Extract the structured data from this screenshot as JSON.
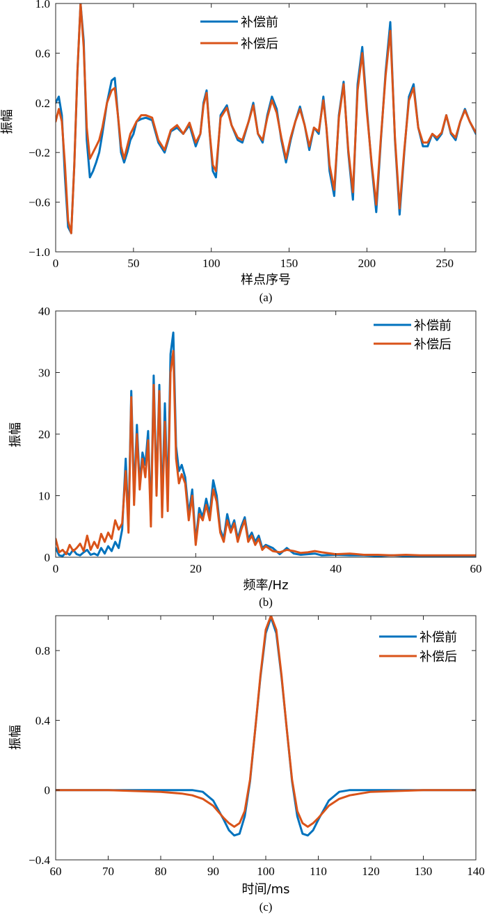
{
  "chart_data": [
    {
      "type": "line",
      "caption": "(a)",
      "xlabel": "样点序号",
      "ylabel": "振幅",
      "xlim": [
        0,
        270
      ],
      "ylim": [
        -1.0,
        1.0
      ],
      "xticks": [
        0,
        50,
        100,
        150,
        200,
        250
      ],
      "xtick_labels": [
        "0",
        "50",
        "100",
        "150",
        "200",
        "250"
      ],
      "yticks": [
        1.0,
        0.6,
        0.2,
        -0.2,
        -0.6,
        -1.0
      ],
      "ytick_labels": [
        "1.0",
        "0.6",
        "0.2",
        "−0.2",
        "−0.6",
        "−1.0"
      ],
      "grid": false,
      "legend": "top-center",
      "series": [
        {
          "name": "补偿前",
          "color": "#0072BD",
          "x": [
            0,
            2,
            4,
            6,
            8,
            10,
            12,
            14,
            16,
            18,
            20,
            22,
            24,
            26,
            28,
            30,
            33,
            36,
            38,
            40,
            42,
            44,
            46,
            48,
            50,
            52,
            55,
            58,
            62,
            66,
            70,
            74,
            78,
            82,
            86,
            90,
            93,
            95,
            97,
            99,
            101,
            103,
            106,
            110,
            113,
            117,
            120,
            124,
            127,
            130,
            133,
            136,
            139,
            142,
            145,
            148,
            151,
            154,
            157,
            160,
            163,
            166,
            169,
            172,
            174,
            176,
            179,
            182,
            185,
            188,
            191,
            194,
            197,
            200,
            203,
            206,
            209,
            212,
            215,
            218,
            221,
            224,
            227,
            230,
            233,
            236,
            239,
            242,
            245,
            248,
            251,
            254,
            257,
            260,
            263,
            266,
            270
          ],
          "y": [
            0.2,
            0.25,
            0.1,
            -0.4,
            -0.8,
            -0.85,
            -0.3,
            0.45,
            1.0,
            0.7,
            -0.1,
            -0.4,
            -0.35,
            -0.28,
            -0.2,
            -0.05,
            0.2,
            0.38,
            0.4,
            0.1,
            -0.2,
            -0.28,
            -0.2,
            -0.1,
            -0.05,
            0.05,
            0.07,
            0.08,
            0.06,
            -0.12,
            -0.2,
            -0.03,
            0.0,
            -0.05,
            0.02,
            -0.15,
            -0.05,
            0.2,
            0.3,
            -0.05,
            -0.35,
            -0.4,
            0.1,
            0.18,
            0.02,
            -0.1,
            -0.12,
            0.05,
            0.2,
            -0.05,
            -0.12,
            0.1,
            0.25,
            0.15,
            -0.1,
            -0.28,
            -0.1,
            0.05,
            0.17,
            0.02,
            -0.18,
            0.0,
            -0.05,
            0.25,
            0.0,
            -0.35,
            -0.55,
            0.1,
            0.37,
            -0.2,
            -0.58,
            0.35,
            0.65,
            0.15,
            -0.3,
            -0.68,
            -0.1,
            0.45,
            0.85,
            -0.1,
            -0.7,
            -0.2,
            0.25,
            0.35,
            0.0,
            -0.15,
            -0.15,
            -0.05,
            -0.1,
            -0.05,
            0.1,
            -0.05,
            -0.1,
            0.05,
            0.15,
            0.05,
            -0.05
          ]
        },
        {
          "name": "补偿后",
          "color": "#D95319",
          "x": [
            0,
            2,
            4,
            6,
            8,
            10,
            12,
            14,
            16,
            18,
            20,
            22,
            24,
            26,
            28,
            30,
            33,
            36,
            38,
            40,
            42,
            44,
            46,
            48,
            50,
            52,
            55,
            58,
            62,
            66,
            70,
            74,
            78,
            82,
            86,
            90,
            93,
            95,
            97,
            99,
            101,
            103,
            106,
            110,
            113,
            117,
            120,
            124,
            127,
            130,
            133,
            136,
            139,
            142,
            145,
            148,
            151,
            154,
            157,
            160,
            163,
            166,
            169,
            172,
            174,
            176,
            179,
            182,
            185,
            188,
            191,
            194,
            197,
            200,
            203,
            206,
            209,
            212,
            215,
            218,
            221,
            224,
            227,
            230,
            233,
            236,
            239,
            242,
            245,
            248,
            251,
            254,
            257,
            260,
            263,
            266,
            270
          ],
          "y": [
            0.05,
            0.15,
            0.05,
            -0.3,
            -0.75,
            -0.85,
            -0.3,
            0.45,
            1.0,
            0.65,
            0.0,
            -0.25,
            -0.2,
            -0.15,
            -0.1,
            0.0,
            0.2,
            0.3,
            0.32,
            0.1,
            -0.15,
            -0.25,
            -0.15,
            -0.05,
            0.0,
            0.05,
            0.1,
            0.1,
            0.08,
            -0.1,
            -0.18,
            -0.02,
            0.02,
            -0.05,
            0.04,
            -0.12,
            -0.05,
            0.18,
            0.28,
            -0.05,
            -0.3,
            -0.35,
            0.08,
            0.16,
            0.02,
            -0.08,
            -0.1,
            0.05,
            0.18,
            -0.05,
            -0.1,
            0.08,
            0.22,
            0.12,
            -0.08,
            -0.25,
            -0.08,
            0.05,
            0.15,
            0.02,
            -0.15,
            0.0,
            -0.03,
            0.22,
            0.0,
            -0.3,
            -0.5,
            0.08,
            0.35,
            -0.18,
            -0.52,
            0.3,
            0.6,
            0.12,
            -0.28,
            -0.62,
            -0.08,
            0.42,
            0.78,
            -0.08,
            -0.65,
            -0.18,
            0.22,
            0.32,
            0.0,
            -0.12,
            -0.12,
            -0.05,
            -0.08,
            -0.04,
            0.1,
            -0.04,
            -0.08,
            0.05,
            0.14,
            0.05,
            -0.04
          ]
        }
      ]
    },
    {
      "type": "line",
      "caption": "(b)",
      "xlabel": "频率/Hz",
      "ylabel": "振幅",
      "xlim": [
        0,
        60
      ],
      "ylim": [
        0,
        40
      ],
      "xticks": [
        0,
        20,
        40,
        60
      ],
      "xtick_labels": [
        "0",
        "20",
        "40",
        "60"
      ],
      "yticks": [
        0,
        10,
        20,
        30,
        40
      ],
      "ytick_labels": [
        "0",
        "10",
        "20",
        "30",
        "40"
      ],
      "grid": false,
      "legend": "top-right",
      "series": [
        {
          "name": "补偿前",
          "color": "#0072BD",
          "x": [
            0,
            0.5,
            1,
            1.5,
            2,
            2.5,
            3,
            3.5,
            4,
            4.5,
            5,
            5.5,
            6,
            6.5,
            7,
            7.5,
            8,
            8.5,
            9,
            9.5,
            10,
            10.4,
            10.8,
            11.2,
            11.6,
            12,
            12.4,
            12.8,
            13.2,
            13.6,
            14,
            14.4,
            14.8,
            15.2,
            15.6,
            16,
            16.4,
            16.8,
            17.2,
            17.6,
            18,
            18.5,
            19,
            19.5,
            20,
            20.5,
            21,
            21.5,
            22,
            22.5,
            23,
            23.5,
            24,
            24.5,
            25,
            25.5,
            26,
            26.5,
            27,
            27.5,
            28,
            28.5,
            29,
            29.5,
            30,
            31,
            32,
            33,
            34,
            35,
            36,
            37,
            38,
            40,
            42,
            44,
            46,
            48,
            50,
            52,
            54,
            56,
            58,
            60
          ],
          "y": [
            1.5,
            0.3,
            0.2,
            0.8,
            0.4,
            1.2,
            0.5,
            0.3,
            0.8,
            1.2,
            0.4,
            0.6,
            0.3,
            1.5,
            0.6,
            1.8,
            1.0,
            2.5,
            1.5,
            4.5,
            16.0,
            5.0,
            27.0,
            10.0,
            21.5,
            12.0,
            17.0,
            15.0,
            20.5,
            6.0,
            29.5,
            11.0,
            28.0,
            8.0,
            25.0,
            9.0,
            33.0,
            36.5,
            18.0,
            14.0,
            15.0,
            13.0,
            7.0,
            11.0,
            2.5,
            8.0,
            6.5,
            9.5,
            7.0,
            12.5,
            10.0,
            4.5,
            3.0,
            7.0,
            4.5,
            6.0,
            3.0,
            5.0,
            6.5,
            3.0,
            4.0,
            2.5,
            3.5,
            1.5,
            2.0,
            1.5,
            0.5,
            1.5,
            0.6,
            0.4,
            0.5,
            0.6,
            0.3,
            0.4,
            0.3,
            0.3,
            0.2,
            0.3,
            0.2,
            0.2,
            0.2,
            0.2,
            0.2,
            0.2
          ]
        },
        {
          "name": "补偿后",
          "color": "#D95319",
          "x": [
            0,
            0.5,
            1,
            1.5,
            2,
            2.5,
            3,
            3.5,
            4,
            4.5,
            5,
            5.5,
            6,
            6.5,
            7,
            7.5,
            8,
            8.5,
            9,
            9.5,
            10,
            10.4,
            10.8,
            11.2,
            11.6,
            12,
            12.4,
            12.8,
            13.2,
            13.6,
            14,
            14.4,
            14.8,
            15.2,
            15.6,
            16,
            16.4,
            16.8,
            17.2,
            17.6,
            18,
            18.5,
            19,
            19.5,
            20,
            20.5,
            21,
            21.5,
            22,
            22.5,
            23,
            23.5,
            24,
            24.5,
            25,
            25.5,
            26,
            26.5,
            27,
            27.5,
            28,
            28.5,
            29,
            29.5,
            30,
            31,
            32,
            33,
            34,
            35,
            36,
            37,
            38,
            40,
            42,
            44,
            46,
            48,
            50,
            52,
            54,
            56,
            58,
            60
          ],
          "y": [
            3.0,
            0.8,
            1.2,
            0.5,
            2.0,
            1.0,
            1.5,
            2.2,
            1.0,
            3.5,
            1.2,
            2.5,
            1.5,
            3.8,
            2.5,
            4.0,
            3.0,
            6.0,
            4.5,
            5.5,
            14.0,
            4.0,
            26.0,
            8.5,
            20.0,
            11.0,
            16.0,
            13.0,
            19.0,
            5.0,
            28.0,
            10.0,
            27.0,
            6.5,
            22.0,
            7.5,
            30.0,
            33.5,
            16.0,
            12.0,
            13.5,
            12.0,
            6.0,
            10.0,
            2.0,
            7.0,
            6.0,
            8.5,
            6.0,
            11.0,
            9.0,
            4.0,
            2.5,
            6.0,
            4.0,
            5.5,
            2.5,
            4.5,
            6.0,
            2.5,
            3.5,
            2.0,
            3.0,
            1.2,
            1.8,
            1.0,
            0.8,
            1.2,
            1.0,
            0.7,
            0.8,
            1.0,
            0.8,
            0.5,
            0.6,
            0.4,
            0.4,
            0.3,
            0.4,
            0.3,
            0.3,
            0.3,
            0.3,
            0.3
          ]
        }
      ]
    },
    {
      "type": "line",
      "caption": "(c)",
      "xlabel": "时间/ms",
      "ylabel": "振幅",
      "xlim": [
        60,
        140
      ],
      "ylim": [
        -0.4,
        1.0
      ],
      "xticks": [
        60,
        70,
        80,
        90,
        100,
        110,
        120,
        130,
        140
      ],
      "xtick_labels": [
        "60",
        "70",
        "80",
        "90",
        "100",
        "110",
        "120",
        "130",
        "140"
      ],
      "yticks": [
        0.8,
        0.4,
        0,
        -0.4
      ],
      "ytick_labels": [
        "0.8",
        "0.4",
        "0",
        "−0.4"
      ],
      "grid": false,
      "legend": "top-right",
      "series": [
        {
          "name": "补偿前",
          "color": "#0072BD",
          "x": [
            60,
            70,
            80,
            84,
            86,
            88,
            90,
            92,
            93,
            94,
            95,
            96,
            97,
            98,
            99,
            100,
            101,
            102,
            103,
            104,
            105,
            106,
            107,
            108,
            109,
            110,
            112,
            114,
            116,
            118,
            120,
            130,
            140
          ],
          "y": [
            0,
            0,
            0,
            0,
            0,
            -0.01,
            -0.06,
            -0.17,
            -0.23,
            -0.26,
            -0.25,
            -0.15,
            0.05,
            0.35,
            0.65,
            0.9,
            0.99,
            0.9,
            0.65,
            0.35,
            0.05,
            -0.15,
            -0.25,
            -0.26,
            -0.23,
            -0.17,
            -0.06,
            -0.01,
            0,
            0,
            0,
            0,
            0
          ]
        },
        {
          "name": "补偿后",
          "color": "#D95319",
          "x": [
            60,
            70,
            80,
            84,
            86,
            88,
            90,
            92,
            93,
            94,
            95,
            96,
            97,
            98,
            99,
            100,
            101,
            102,
            103,
            104,
            105,
            106,
            107,
            108,
            109,
            110,
            112,
            114,
            116,
            118,
            120,
            130,
            140
          ],
          "y": [
            0,
            0,
            -0.01,
            -0.02,
            -0.03,
            -0.05,
            -0.09,
            -0.16,
            -0.19,
            -0.21,
            -0.19,
            -0.12,
            0.06,
            0.35,
            0.66,
            0.92,
            1.0,
            0.92,
            0.66,
            0.35,
            0.06,
            -0.12,
            -0.19,
            -0.21,
            -0.19,
            -0.16,
            -0.09,
            -0.05,
            -0.03,
            -0.02,
            -0.01,
            0,
            0
          ]
        }
      ]
    }
  ]
}
